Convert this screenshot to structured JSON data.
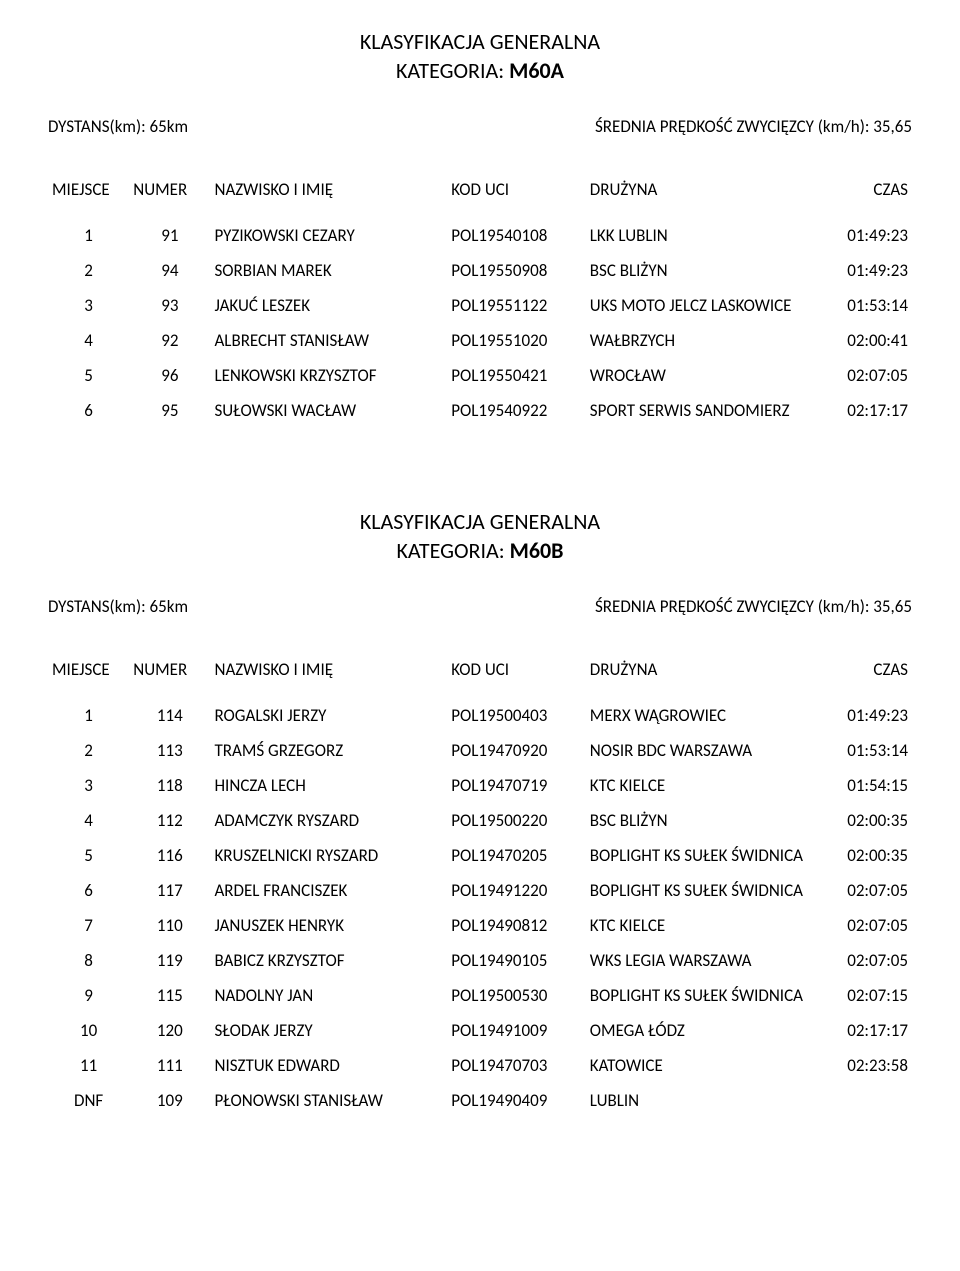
{
  "section1": {
    "mainTitle": "KLASYFIKACJA GENERALNA",
    "categoryLabel": "KATEGORIA: ",
    "categoryValue": "M60A",
    "distance": "DYSTANS(km): 65km",
    "avgSpeed": "ŚREDNIA PRĘDKOŚĆ ZWYCIĘZCY (km/h): 35,65",
    "headers": {
      "place": "MIEJSCE",
      "number": "NUMER",
      "name": "NAZWISKO I IMIĘ",
      "code": "KOD UCI",
      "team": "DRUŻYNA",
      "time": "CZAS"
    },
    "rows": [
      {
        "place": "1",
        "number": "91",
        "name": "PYZIKOWSKI CEZARY",
        "code": "POL19540108",
        "team": "LKK LUBLIN",
        "time": "01:49:23"
      },
      {
        "place": "2",
        "number": "94",
        "name": "SORBIAN MAREK",
        "code": "POL19550908",
        "team": "BSC BLIŻYN",
        "time": "01:49:23"
      },
      {
        "place": "3",
        "number": "93",
        "name": "JAKUĆ LESZEK",
        "code": "POL19551122",
        "team": "UKS MOTO JELCZ LASKOWICE",
        "time": "01:53:14"
      },
      {
        "place": "4",
        "number": "92",
        "name": "ALBRECHT STANISŁAW",
        "code": "POL19551020",
        "team": "WAŁBRZYCH",
        "time": "02:00:41"
      },
      {
        "place": "5",
        "number": "96",
        "name": "LENKOWSKI KRZYSZTOF",
        "code": "POL19550421",
        "team": "WROCŁAW",
        "time": "02:07:05"
      },
      {
        "place": "6",
        "number": "95",
        "name": "SUŁOWSKI WACŁAW",
        "code": "POL19540922",
        "team": "SPORT SERWIS SANDOMIERZ",
        "time": "02:17:17"
      }
    ]
  },
  "section2": {
    "mainTitle": "KLASYFIKACJA GENERALNA",
    "categoryLabel": "KATEGORIA: ",
    "categoryValue": "M60B",
    "distance": "DYSTANS(km): 65km",
    "avgSpeed": "ŚREDNIA PRĘDKOŚĆ ZWYCIĘZCY (km/h): 35,65",
    "headers": {
      "place": "MIEJSCE",
      "number": "NUMER",
      "name": "NAZWISKO I IMIĘ",
      "code": "KOD UCI",
      "team": "DRUŻYNA",
      "time": "CZAS"
    },
    "rows": [
      {
        "place": "1",
        "number": "114",
        "name": "ROGALSKI JERZY",
        "code": "POL19500403",
        "team": "MERX WĄGROWIEC",
        "time": "01:49:23"
      },
      {
        "place": "2",
        "number": "113",
        "name": "TRAMŚ GRZEGORZ",
        "code": "POL19470920",
        "team": "NOSIR BDC WARSZAWA",
        "time": "01:53:14"
      },
      {
        "place": "3",
        "number": "118",
        "name": "HINCZA LECH",
        "code": "POL19470719",
        "team": "KTC KIELCE",
        "time": "01:54:15"
      },
      {
        "place": "4",
        "number": "112",
        "name": "ADAMCZYK RYSZARD",
        "code": "POL19500220",
        "team": "BSC BLIŻYN",
        "time": "02:00:35"
      },
      {
        "place": "5",
        "number": "116",
        "name": "KRUSZELNICKI RYSZARD",
        "code": "POL19470205",
        "team": "BOPLIGHT KS SUŁEK ŚWIDNICA",
        "time": "02:00:35"
      },
      {
        "place": "6",
        "number": "117",
        "name": "ARDEL FRANCISZEK",
        "code": "POL19491220",
        "team": "BOPLIGHT KS SUŁEK ŚWIDNICA",
        "time": "02:07:05"
      },
      {
        "place": "7",
        "number": "110",
        "name": "JANUSZEK HENRYK",
        "code": "POL19490812",
        "team": "KTC KIELCE",
        "time": "02:07:05"
      },
      {
        "place": "8",
        "number": "119",
        "name": "BABICZ KRZYSZTOF",
        "code": "POL19490105",
        "team": "WKS LEGIA WARSZAWA",
        "time": "02:07:05"
      },
      {
        "place": "9",
        "number": "115",
        "name": "NADOLNY JAN",
        "code": "POL19500530",
        "team": "BOPLIGHT KS SUŁEK ŚWIDNICA",
        "time": "02:07:15"
      },
      {
        "place": "10",
        "number": "120",
        "name": "SŁODAK JERZY",
        "code": "POL19491009",
        "team": "OMEGA  ŁÓDZ",
        "time": "02:17:17"
      },
      {
        "place": "11",
        "number": "111",
        "name": "NISZTUK EDWARD",
        "code": "POL19470703",
        "team": "KATOWICE",
        "time": "02:23:58"
      },
      {
        "place": "DNF",
        "number": "109",
        "name": "PŁONOWSKI STANISŁAW",
        "code": "POL19490409",
        "team": "LUBLIN",
        "time": ""
      }
    ]
  }
}
